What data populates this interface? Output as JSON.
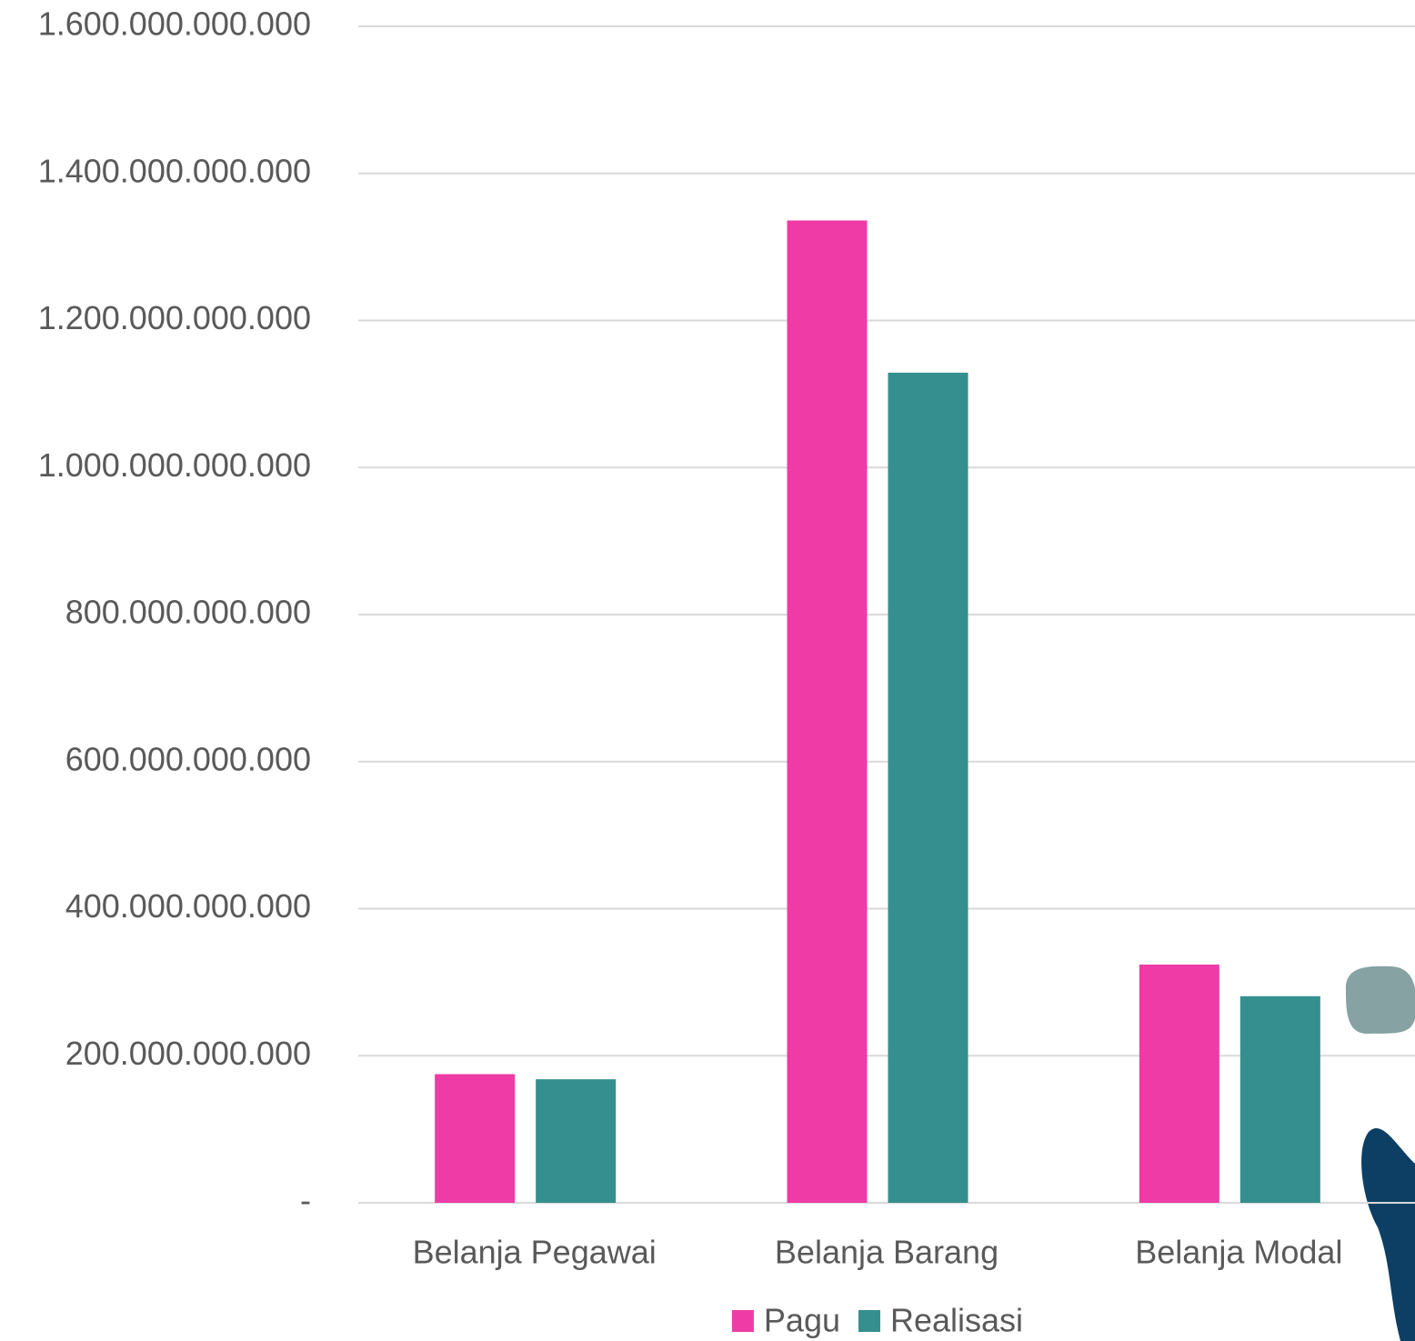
{
  "chart_data": {
    "type": "bar",
    "categories": [
      "Belanja Pegawai",
      "Belanja Barang",
      "Belanja Modal"
    ],
    "series": [
      {
        "name": "Pagu",
        "color": "#ee3ba6",
        "values": [
          175000000000,
          1336000000000,
          324000000000
        ]
      },
      {
        "name": "Realisasi",
        "color": "#348f8e",
        "values": [
          168000000000,
          1129000000000,
          281000000000
        ]
      }
    ],
    "ylim": [
      0,
      1600000000000
    ],
    "yticks": [
      {
        "value": 0,
        "label": "-"
      },
      {
        "value": 200000000000,
        "label": "200.000.000.000"
      },
      {
        "value": 400000000000,
        "label": "400.000.000.000"
      },
      {
        "value": 600000000000,
        "label": "600.000.000.000"
      },
      {
        "value": 800000000000,
        "label": "800.000.000.000"
      },
      {
        "value": 1000000000000,
        "label": "1.000.000.000.000"
      },
      {
        "value": 1200000000000,
        "label": "1.200.000.000.000"
      },
      {
        "value": 1400000000000,
        "label": "1.400.000.000.000"
      },
      {
        "value": 1600000000000,
        "label": "1.600.000.000.000"
      }
    ],
    "grid": true,
    "legend": "bottom"
  }
}
